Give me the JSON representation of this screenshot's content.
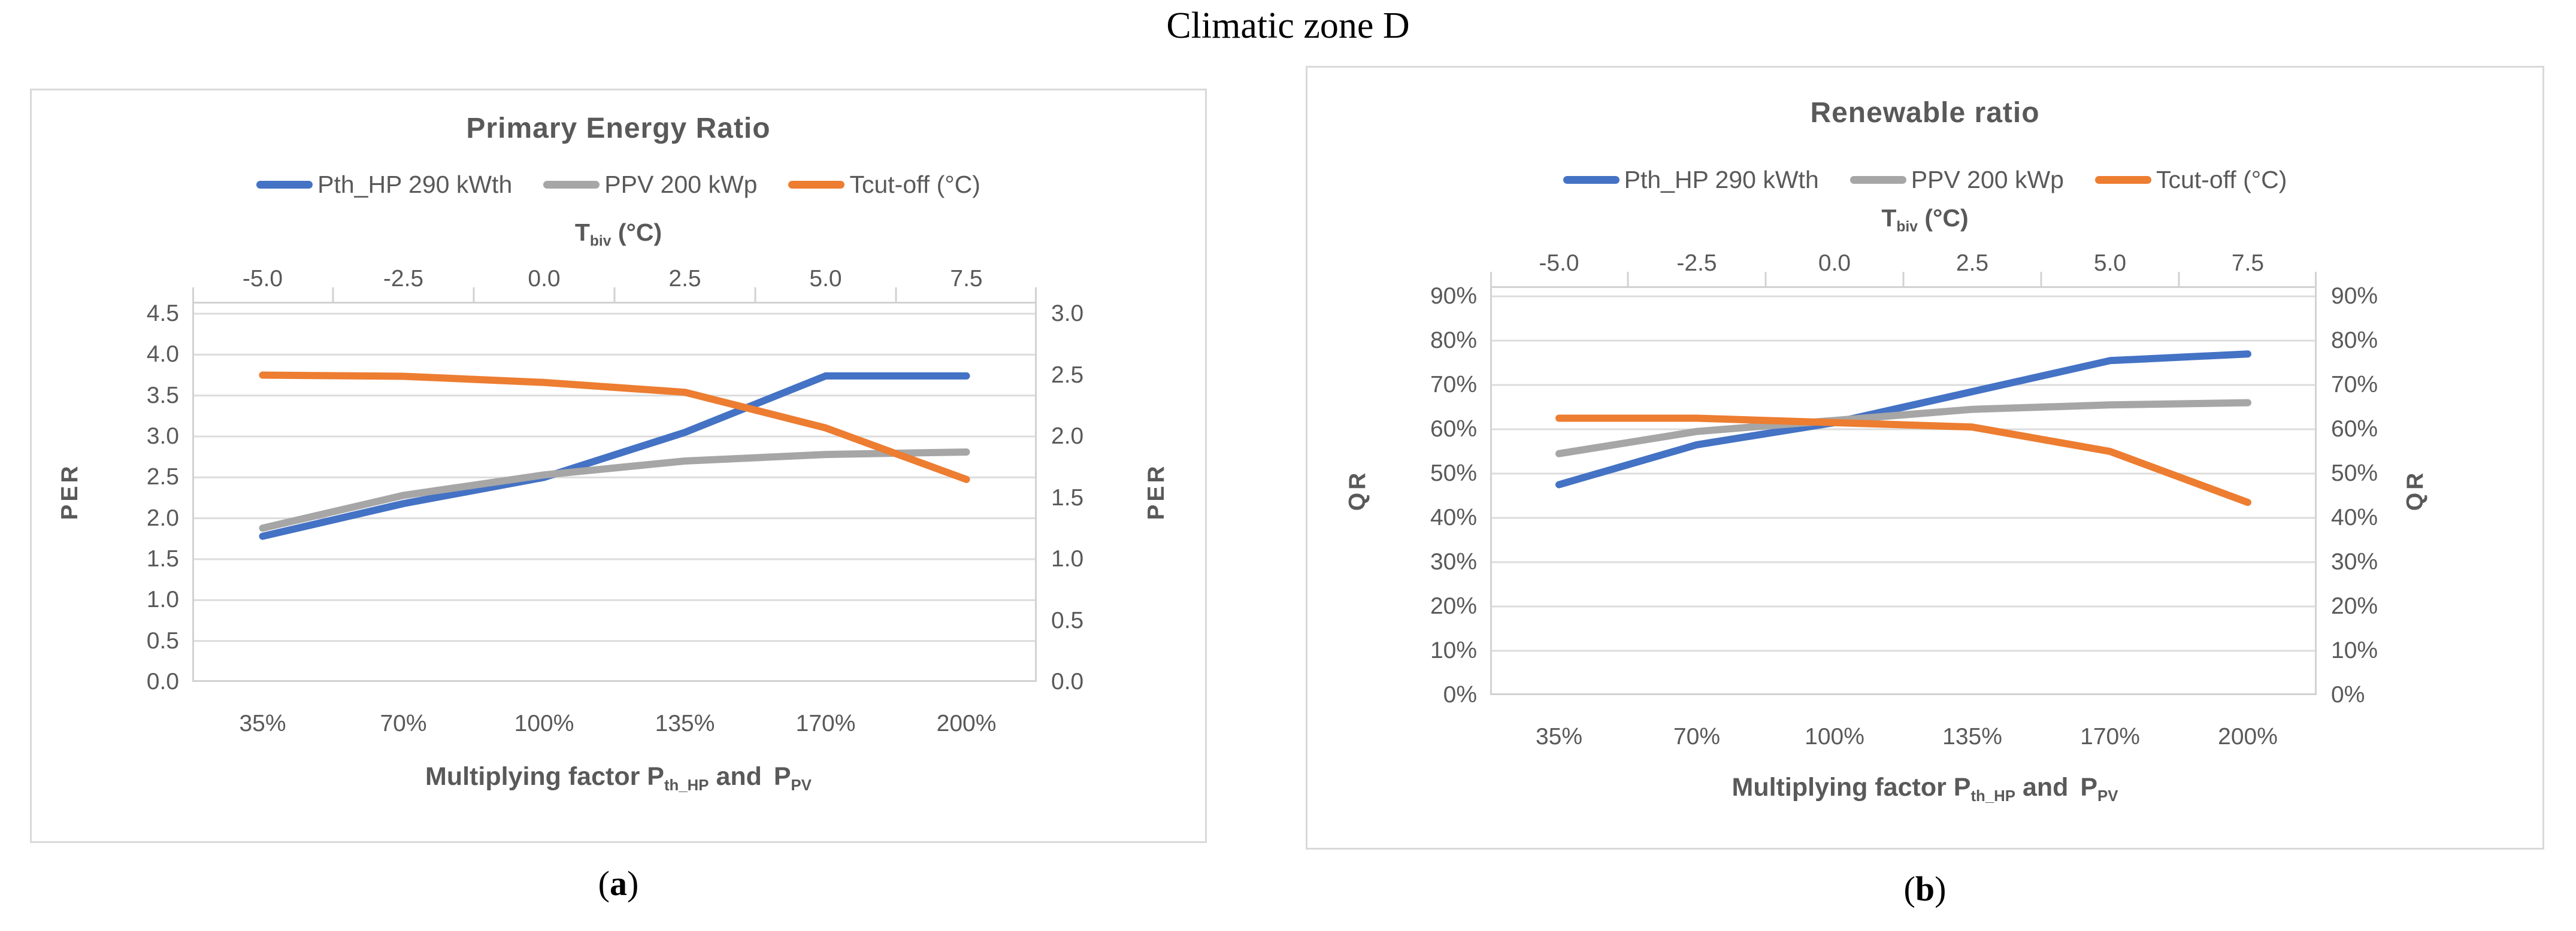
{
  "figure_title": "Climatic zone D",
  "captions": [
    {
      "open": "(",
      "letter": "a",
      "close": ")"
    },
    {
      "open": "(",
      "letter": "b",
      "close": ")"
    }
  ],
  "chart_data": [
    {
      "type": "line",
      "title": "Primary Energy Ratio",
      "legend_position": "top",
      "grid": true,
      "top_axis": {
        "title_t1": "T",
        "title_s1": "biv",
        "title_t2": " (°C)",
        "tick_labels": [
          "-5.0",
          "-2.5",
          "0.0",
          "2.5",
          "5.0",
          "7.5"
        ]
      },
      "x_axis": {
        "title_t1": "Multiplying factor P",
        "title_s1": "th_HP",
        "title_t2": " and ",
        "title_t3": "P",
        "title_s2": "PV",
        "categories": [
          "35%",
          "70%",
          "100%",
          "135%",
          "170%",
          "200%"
        ]
      },
      "y_axis_left": {
        "label": "PER",
        "min": 0,
        "max": 4.5,
        "step": 0.5,
        "tick_labels": [
          "4.5",
          "4.0",
          "3.5",
          "3.0",
          "2.5",
          "2.0",
          "1.5",
          "1.0",
          "0.5",
          "0.0"
        ]
      },
      "y_axis_right": {
        "label": "PER",
        "min": 0,
        "max": 3.0,
        "step": 0.5,
        "tick_labels": [
          "3.0",
          "2.5",
          "2.0",
          "1.5",
          "1.0",
          "0.5",
          "0.0"
        ]
      },
      "series": [
        {
          "name": "Pth_HP 290 kWth",
          "color": "#4472C4",
          "axis": "left",
          "values": [
            1.78,
            2.18,
            2.5,
            3.05,
            3.74,
            3.74
          ]
        },
        {
          "name": "PPV 200 kWp",
          "color": "#A6A6A6",
          "axis": "left",
          "values": [
            1.88,
            2.28,
            2.53,
            2.7,
            2.78,
            2.81
          ]
        },
        {
          "name": "Tcut-off (°C)",
          "color": "#ED7D31",
          "axis": "right",
          "values": [
            2.5,
            2.49,
            2.44,
            2.36,
            2.07,
            1.65
          ]
        }
      ]
    },
    {
      "type": "line",
      "title": "Renewable ratio",
      "legend_position": "top",
      "grid": true,
      "top_axis": {
        "title_t1": "T",
        "title_s1": "biv",
        "title_t2": " (°C)",
        "tick_labels": [
          "-5.0",
          "-2.5",
          "0.0",
          "2.5",
          "5.0",
          "7.5"
        ]
      },
      "x_axis": {
        "title_t1": "Multiplying factor P",
        "title_s1": "th_HP",
        "title_t2": " and ",
        "title_t3": "P",
        "title_s2": "PV",
        "categories": [
          "35%",
          "70%",
          "100%",
          "135%",
          "170%",
          "200%"
        ]
      },
      "y_axis_left": {
        "label": "QR",
        "min": 0,
        "max": 90,
        "step": 10,
        "unit": "%",
        "tick_labels": [
          "90%",
          "80%",
          "70%",
          "60%",
          "50%",
          "40%",
          "30%",
          "20%",
          "10%",
          "0%"
        ]
      },
      "y_axis_right": {
        "label": "QR",
        "min": 0,
        "max": 90,
        "step": 10,
        "unit": "%",
        "tick_labels": [
          "90%",
          "80%",
          "70%",
          "60%",
          "50%",
          "40%",
          "30%",
          "20%",
          "10%",
          "0%"
        ]
      },
      "series": [
        {
          "name": "Pth_HP 290 kWth",
          "color": "#4472C4",
          "axis": "left",
          "values": [
            47.5,
            56.5,
            61.5,
            68.5,
            75.5,
            77.0
          ]
        },
        {
          "name": "PPV 200 kWp",
          "color": "#A6A6A6",
          "axis": "left",
          "values": [
            54.5,
            59.5,
            62.0,
            64.5,
            65.5,
            66.0
          ]
        },
        {
          "name": "Tcut-off (°C)",
          "color": "#ED7D31",
          "axis": "right",
          "values": [
            62.5,
            62.5,
            61.5,
            60.5,
            55.0,
            43.5
          ]
        }
      ]
    }
  ]
}
